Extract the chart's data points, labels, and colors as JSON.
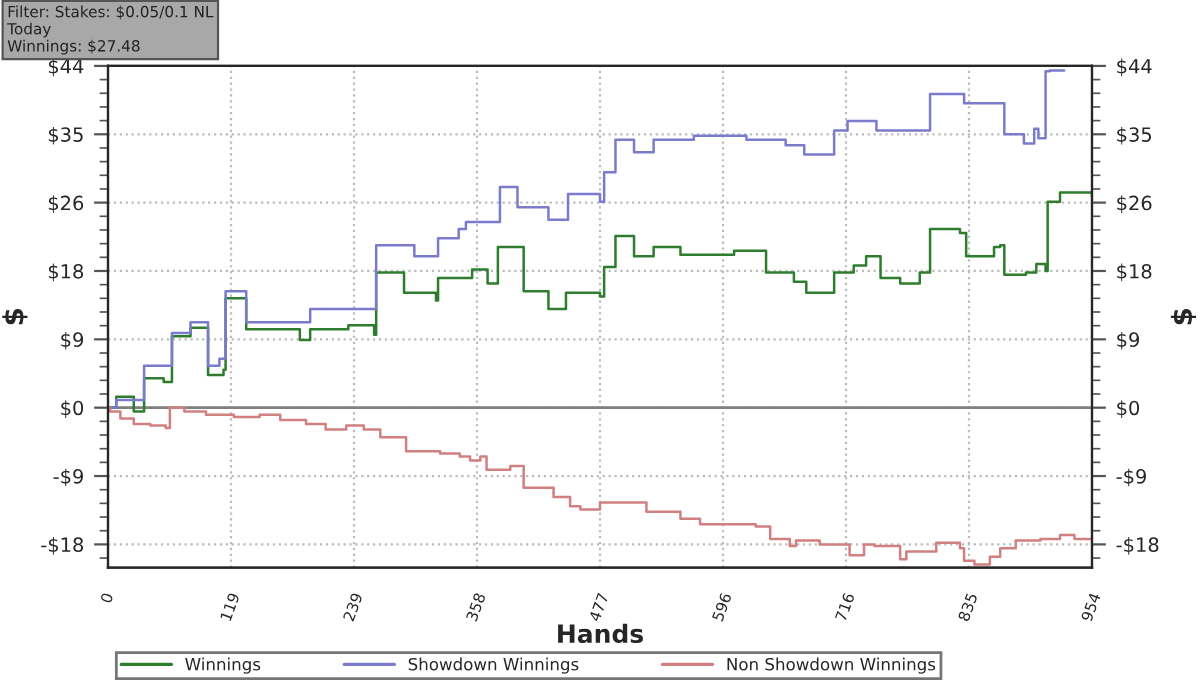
{
  "chart_data": {
    "type": "step",
    "xlabel": "Hands",
    "ylabel": "$",
    "y2label": "$",
    "annotations": [
      "Filter: Stakes: $0.05/0.1 NL",
      "Today",
      "Winnings: $27.48"
    ],
    "xlim": [
      0,
      954
    ],
    "xticks": [
      0,
      {
        "value": 119.25,
        "label": "119"
      },
      {
        "value": 238.5,
        "label": "239"
      },
      {
        "value": 357.75,
        "label": "358"
      },
      {
        "value": 477,
        "label": "477"
      },
      {
        "value": 596.25,
        "label": "596"
      },
      {
        "value": 715.5,
        "label": "716"
      },
      {
        "value": 834.75,
        "label": "835"
      },
      954
    ],
    "ylim": [
      -20.6,
      44
    ],
    "yticks": [
      {
        "value": -17.6,
        "label": "-$18"
      },
      {
        "value": -8.8,
        "label": "-$9"
      },
      {
        "value": 0,
        "label": "$0"
      },
      {
        "value": 8.8,
        "label": "$9"
      },
      {
        "value": 17.6,
        "label": "$18"
      },
      {
        "value": 26.4,
        "label": "$26"
      },
      {
        "value": 35.2,
        "label": "$35"
      },
      {
        "value": 44,
        "label": "$44"
      }
    ],
    "y2lim": [
      -20.6,
      44
    ],
    "y2ticks": [
      {
        "value": -17.6,
        "label": "-$18"
      },
      {
        "value": -8.8,
        "label": "-$9"
      },
      {
        "value": 0,
        "label": "$0"
      },
      {
        "value": 8.8,
        "label": "$9"
      },
      {
        "value": 17.6,
        "label": "$18"
      },
      {
        "value": 26.4,
        "label": "$26"
      },
      {
        "value": 35.2,
        "label": "$35"
      },
      {
        "value": 44,
        "label": "$44"
      }
    ],
    "grid": true,
    "legend": "bottom",
    "marker": "none",
    "line_style": "solid",
    "ref_lines": [
      {
        "axis": "y",
        "value": 0,
        "color": "#808080"
      }
    ],
    "series": [
      {
        "name": "Winnings",
        "color": "#2e7d2e",
        "x": [
          0,
          8,
          25,
          35,
          54,
          62,
          80,
          95,
          97,
          112,
          114,
          132,
          134,
          186,
          196,
          233,
          258,
          260,
          287,
          318,
          320,
          353,
          368,
          378,
          393,
          403,
          427,
          444,
          477,
          481,
          492,
          510,
          529,
          555,
          607,
          638,
          665,
          677,
          700,
          704,
          723,
          735,
          749,
          768,
          787,
          797,
          826,
          832,
          859,
          865,
          869,
          890,
          900,
          909,
          911,
          923,
          954
        ],
        "values": [
          0,
          1.4,
          -0.5,
          3.8,
          3.3,
          9.2,
          10.3,
          10.3,
          4.2,
          4.9,
          14.1,
          14.1,
          10.1,
          8.7,
          10.1,
          10.6,
          9.4,
          17.4,
          14.8,
          13.8,
          16.7,
          17.8,
          16.0,
          20.7,
          20.7,
          15.0,
          12.7,
          14.8,
          14.3,
          18.1,
          22.1,
          19.5,
          20.7,
          19.7,
          20.2,
          17.4,
          16.2,
          14.8,
          14.8,
          17.4,
          18.3,
          19.5,
          16.7,
          16.0,
          17.4,
          23.0,
          22.5,
          19.5,
          20.7,
          20.9,
          17.1,
          17.4,
          18.5,
          17.6,
          26.5,
          27.7,
          27.2
        ]
      },
      {
        "name": "Showdown Winnings",
        "color": "#7b7bcc",
        "x": [
          0,
          8,
          35,
          56,
          62,
          80,
          97,
          108,
          114,
          134,
          196,
          260,
          297,
          320,
          340,
          347,
          380,
          397,
          427,
          446,
          477,
          481,
          492,
          510,
          529,
          568,
          619,
          657,
          675,
          704,
          717,
          745,
          797,
          830,
          869,
          888,
          898,
          902,
          909,
          913,
          927
        ],
        "values": [
          0,
          1.0,
          5.4,
          5.4,
          9.6,
          11.0,
          5.4,
          6.3,
          15.0,
          11.0,
          12.7,
          20.9,
          19.5,
          21.8,
          23.0,
          23.9,
          28.4,
          25.8,
          24.2,
          27.5,
          26.5,
          30.3,
          34.5,
          32.9,
          34.5,
          35.0,
          34.5,
          33.8,
          32.6,
          35.7,
          36.9,
          35.7,
          40.4,
          39.2,
          35.2,
          34.0,
          35.9,
          34.7,
          43.3,
          43.4,
          43.4
        ]
      },
      {
        "name": "Non Showdown Winnings",
        "color": "#d08080",
        "x": [
          0,
          2,
          12,
          25,
          41,
          56,
          60,
          74,
          95,
          122,
          147,
          167,
          192,
          211,
          231,
          248,
          264,
          287,
          289,
          322,
          341,
          351,
          361,
          367,
          390,
          403,
          432,
          448,
          458,
          477,
          502,
          522,
          555,
          574,
          607,
          628,
          642,
          661,
          667,
          690,
          719,
          733,
          743,
          768,
          774,
          803,
          826,
          830,
          840,
          855,
          865,
          880,
          904,
          923,
          937,
          954
        ],
        "values": [
          0,
          -0.5,
          -1.4,
          -2.1,
          -2.3,
          -2.6,
          0,
          -0.5,
          -0.9,
          -1.2,
          -0.9,
          -1.6,
          -2.1,
          -2.8,
          -2.3,
          -2.8,
          -3.8,
          -3.8,
          -5.6,
          -5.9,
          -6.3,
          -6.8,
          -6.3,
          -8.0,
          -7.5,
          -10.3,
          -11.5,
          -12.7,
          -13.1,
          -12.2,
          -12.2,
          -13.4,
          -14.3,
          -15.0,
          -15.0,
          -15.3,
          -16.9,
          -17.8,
          -17.1,
          -17.6,
          -19.0,
          -17.6,
          -17.8,
          -19.5,
          -18.5,
          -17.4,
          -18.1,
          -19.7,
          -20.2,
          -19.2,
          -18.1,
          -17.1,
          -16.9,
          -16.4,
          -16.9,
          -16.9
        ]
      }
    ]
  }
}
